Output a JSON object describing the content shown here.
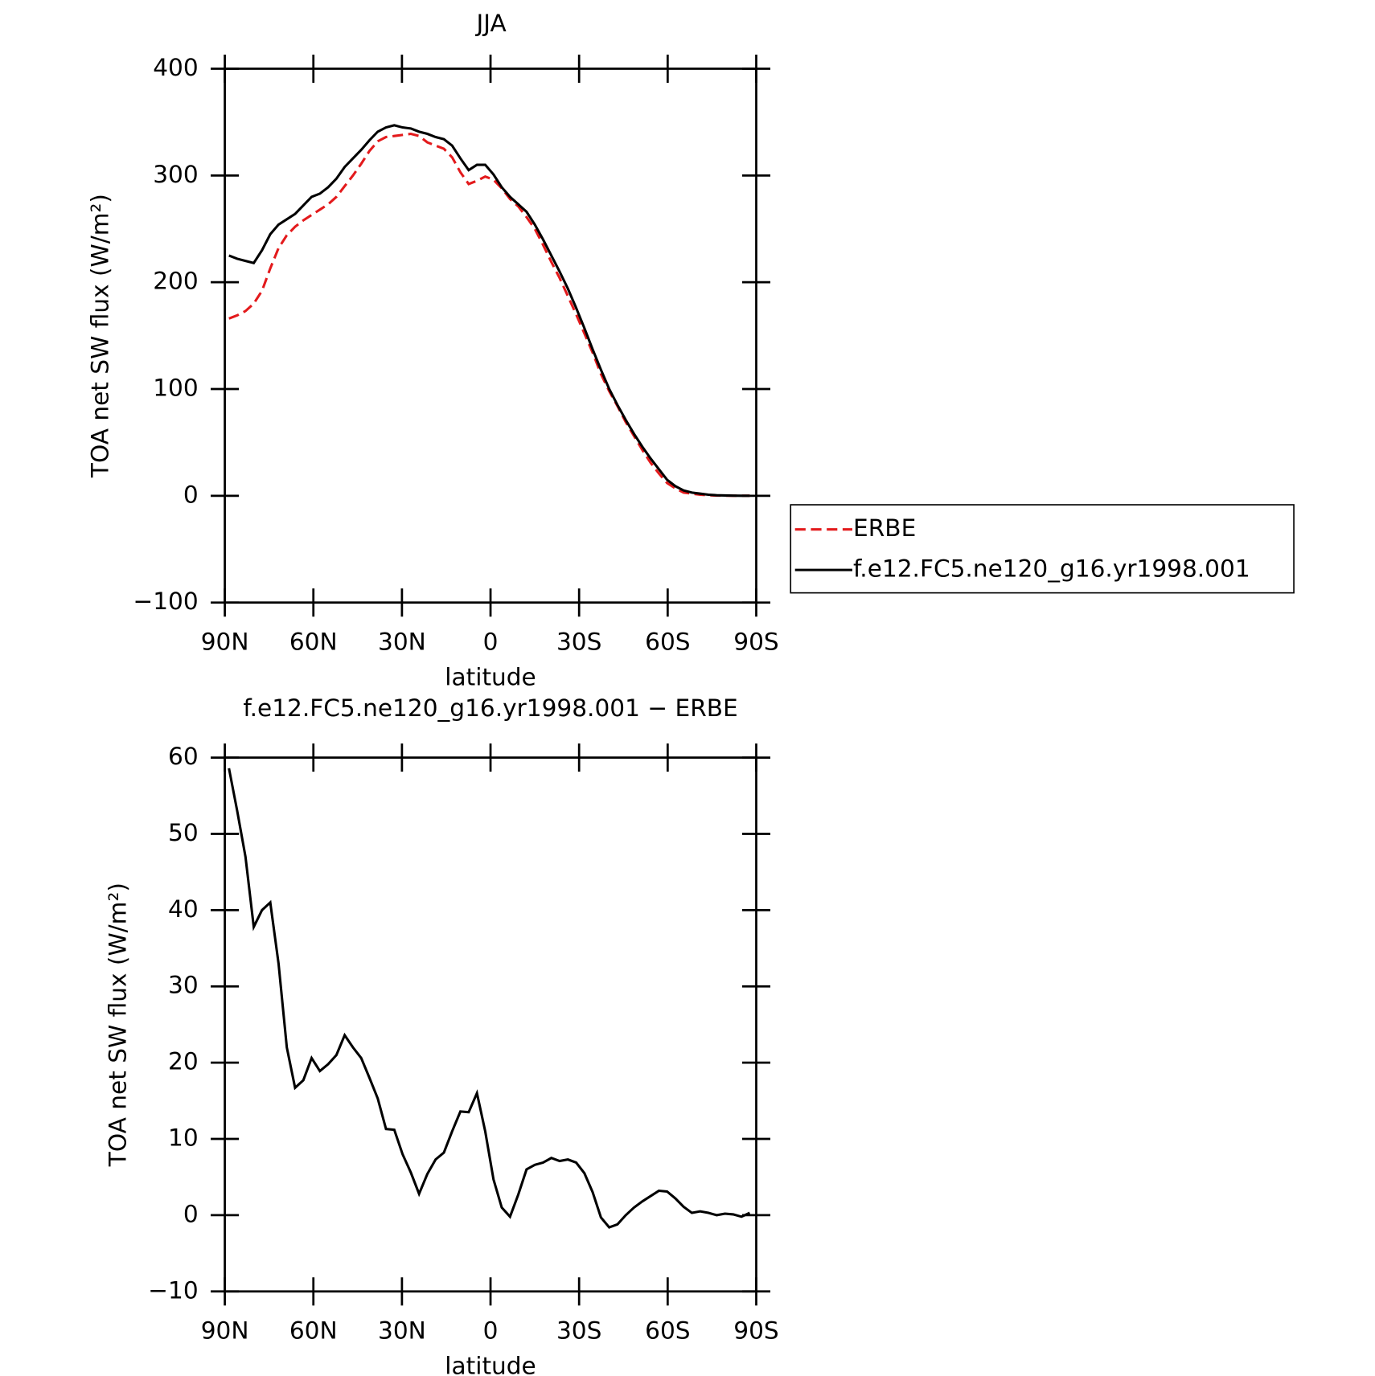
{
  "chart_data": [
    {
      "type": "line",
      "title": "JJA",
      "xlabel": "latitude",
      "ylabel": "TOA net SW flux (W/m²)",
      "x": [
        88.6,
        85.8,
        83,
        80.2,
        77.4,
        74.6,
        71.8,
        69,
        66.2,
        63.4,
        60.6,
        57.8,
        55,
        52.2,
        49.4,
        46.6,
        43.8,
        41,
        38.2,
        35.4,
        32.6,
        29.8,
        27,
        24.2,
        21.4,
        18.6,
        15.8,
        13,
        10.2,
        7.4,
        4.6,
        1.8,
        -1,
        -3.8,
        -6.6,
        -9.4,
        -12.2,
        -15,
        -17.8,
        -20.6,
        -23.4,
        -26.2,
        -29,
        -31.8,
        -34.6,
        -37.4,
        -40.2,
        -43,
        -45.8,
        -48.6,
        -51.4,
        -54.2,
        -57,
        -59.8,
        -62.6,
        -65.4,
        -68.2,
        -71,
        -73.8,
        -76.6,
        -79.4,
        -82.2,
        -85,
        -87.8
      ],
      "series": [
        {
          "name": "ERBE",
          "color": "#e31a1c",
          "dash": true,
          "values": [
            166,
            169,
            173,
            180,
            192,
            213,
            232,
            244,
            252,
            258,
            263,
            268,
            273,
            280,
            290,
            300,
            311,
            323,
            332,
            336,
            337,
            338,
            339,
            337,
            331,
            328,
            325,
            317,
            303,
            292,
            295,
            299,
            296,
            288,
            278,
            271,
            261,
            250,
            235,
            219,
            204,
            187,
            170,
            152,
            134,
            114,
            98,
            84,
            69,
            56,
            43,
            31,
            21,
            12,
            7,
            3,
            2,
            1,
            0.5,
            0.2,
            0.1,
            0,
            0,
            0
          ]
        },
        {
          "name": "f.e12.FC5.ne120_g16.yr1998.001",
          "color": "#000000",
          "dash": false,
          "values": [
            225,
            222,
            220,
            218,
            230,
            245,
            254,
            259,
            264,
            272,
            280,
            283,
            289,
            297,
            308,
            316,
            324,
            333,
            341,
            345,
            347,
            345,
            344,
            341,
            339,
            336,
            334,
            328,
            316,
            305,
            310,
            310,
            301,
            289,
            280,
            273,
            266,
            254,
            240,
            225,
            210,
            194,
            176,
            157,
            137,
            118,
            100,
            85,
            71,
            58,
            46,
            35,
            25,
            15,
            9,
            5,
            3,
            2,
            1,
            0.5,
            0.3,
            0.1,
            0,
            0
          ]
        }
      ],
      "xlim": [
        90,
        -90
      ],
      "xticks": [
        {
          "value": 90,
          "label": "90N"
        },
        {
          "value": 60,
          "label": "60N"
        },
        {
          "value": 30,
          "label": "30N"
        },
        0,
        {
          "value": -30,
          "label": "30S"
        },
        {
          "value": -60,
          "label": "60S"
        },
        {
          "value": -90,
          "label": "90S"
        }
      ],
      "ylim": [
        -100,
        400
      ],
      "yticks": [
        {
          "value": -100,
          "label": "−100"
        },
        0,
        100,
        200,
        300,
        400
      ],
      "legend": "right"
    },
    {
      "type": "line",
      "title": "f.e12.FC5.ne120_g16.yr1998.001 − ERBE",
      "xlabel": "latitude",
      "ylabel": "TOA net SW flux (W/m²)",
      "x": [
        88.6,
        85.8,
        83,
        80.2,
        77.4,
        74.6,
        71.8,
        69,
        66.2,
        63.4,
        60.6,
        57.8,
        55,
        52.2,
        49.4,
        46.6,
        43.8,
        41,
        38.2,
        35.4,
        32.6,
        29.8,
        27,
        24.2,
        21.4,
        18.6,
        15.8,
        13,
        10.2,
        7.4,
        4.6,
        1.8,
        -1,
        -3.8,
        -6.6,
        -9.4,
        -12.2,
        -15,
        -17.8,
        -20.6,
        -23.4,
        -26.2,
        -29,
        -31.8,
        -34.6,
        -37.4,
        -40.2,
        -43,
        -45.8,
        -48.6,
        -51.4,
        -54.2,
        -57,
        -59.8,
        -62.6,
        -65.4,
        -68.2,
        -71,
        -73.8,
        -76.6,
        -79.4,
        -82.2,
        -85,
        -87.8
      ],
      "values": [
        58.6,
        53,
        47,
        37.8,
        40,
        41,
        33,
        22,
        16.7,
        17.7,
        20.6,
        18.9,
        19.8,
        21,
        23.6,
        22,
        20.6,
        18,
        15.3,
        11.3,
        11.2,
        8,
        5.6,
        2.8,
        5.4,
        7.3,
        8.2,
        11,
        13.6,
        13.5,
        16,
        11,
        4.7,
        1,
        -0.2,
        2.7,
        6,
        6.6,
        6.9,
        7.5,
        7.1,
        7.3,
        6.9,
        5.5,
        3,
        -0.3,
        -1.6,
        -1.2,
        0,
        1,
        1.8,
        2.5,
        3.2,
        3.1,
        2.2,
        1.1,
        0.3,
        0.5,
        0.3,
        0,
        0.2,
        0.1,
        -0.2,
        0.3
      ],
      "color": "#000000",
      "xlim": [
        90,
        -90
      ],
      "xticks": [
        {
          "value": 90,
          "label": "90N"
        },
        {
          "value": 60,
          "label": "60N"
        },
        {
          "value": 30,
          "label": "30N"
        },
        0,
        {
          "value": -30,
          "label": "30S"
        },
        {
          "value": -60,
          "label": "60S"
        },
        {
          "value": -90,
          "label": "90S"
        }
      ],
      "ylim": [
        -10,
        60
      ],
      "yticks": [
        {
          "value": -10,
          "label": "−10"
        },
        0,
        10,
        20,
        30,
        40,
        50,
        60
      ]
    }
  ]
}
